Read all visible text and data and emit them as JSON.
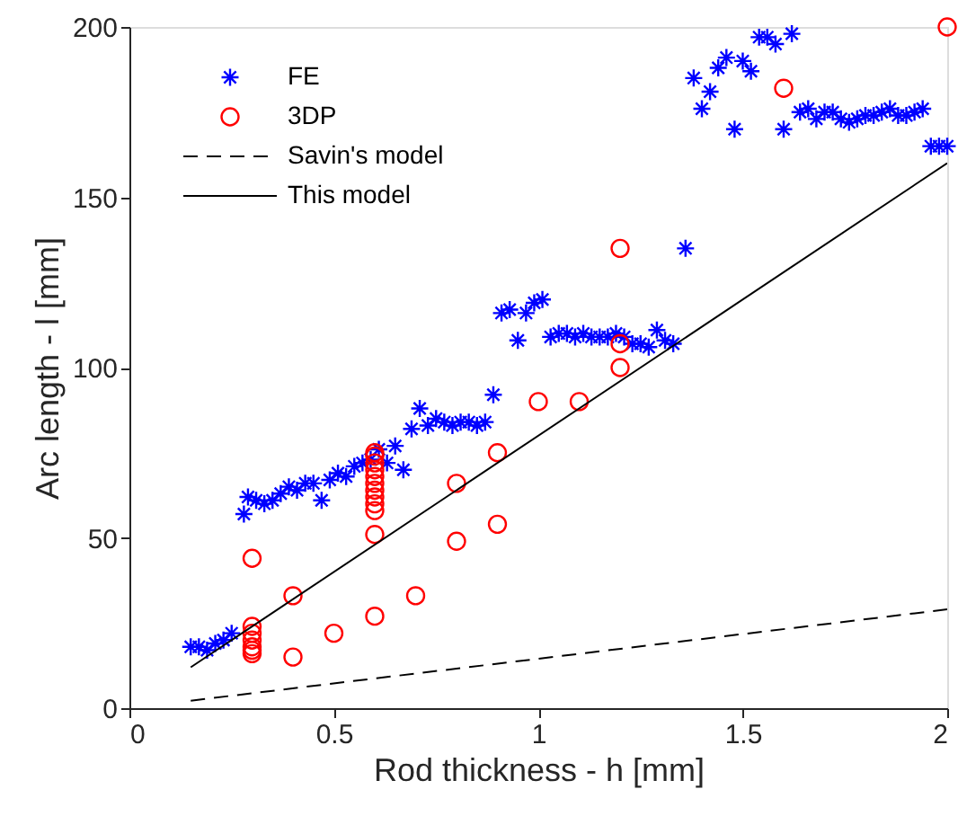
{
  "chart_data": {
    "type": "scatter",
    "xlabel": "Rod thickness - h [mm]",
    "ylabel": "Arc length - l [mm]",
    "xlim": [
      0,
      2
    ],
    "xticks": [
      0,
      0.5,
      1,
      1.5,
      2
    ],
    "ylim": [
      0,
      200
    ],
    "yticks": [
      0,
      50,
      100,
      150,
      200
    ],
    "grid": false,
    "legend": "top left",
    "series": [
      {
        "name": "FE",
        "type": "scatter",
        "marker": "cross",
        "color": "#0000ff",
        "x": [
          0.15,
          0.17,
          0.19,
          0.21,
          0.23,
          0.25,
          0.28,
          0.29,
          0.31,
          0.33,
          0.35,
          0.37,
          0.39,
          0.41,
          0.43,
          0.45,
          0.47,
          0.49,
          0.51,
          0.53,
          0.55,
          0.57,
          0.59,
          0.61,
          0.63,
          0.65,
          0.67,
          0.69,
          0.71,
          0.73,
          0.75,
          0.77,
          0.79,
          0.81,
          0.83,
          0.85,
          0.87,
          0.89,
          0.91,
          0.93,
          0.95,
          0.97,
          0.99,
          1.01,
          1.03,
          1.05,
          1.07,
          1.09,
          1.11,
          1.13,
          1.15,
          1.17,
          1.19,
          1.21,
          1.23,
          1.25,
          1.27,
          1.29,
          1.31,
          1.33,
          1.36,
          1.38,
          1.4,
          1.42,
          1.44,
          1.46,
          1.48,
          1.5,
          1.52,
          1.54,
          1.56,
          1.58,
          1.6,
          1.62,
          1.64,
          1.66,
          1.68,
          1.7,
          1.72,
          1.74,
          1.76,
          1.78,
          1.8,
          1.82,
          1.84,
          1.86,
          1.88,
          1.9,
          1.92,
          1.94,
          1.96,
          1.98,
          2.0
        ],
        "values": [
          18,
          18,
          17,
          19,
          20,
          22,
          57,
          62,
          61,
          60,
          61,
          63,
          65,
          64,
          66,
          66,
          61,
          67,
          69,
          68,
          71,
          72,
          73,
          76,
          72,
          77,
          70,
          82,
          88,
          83,
          85,
          84,
          83,
          84,
          84,
          83,
          84,
          92,
          116,
          117,
          108,
          116,
          119,
          120,
          109,
          110,
          110,
          109,
          110,
          109,
          109,
          109,
          110,
          109,
          107,
          107,
          106,
          111,
          108,
          107,
          135,
          185,
          176,
          181,
          188,
          191,
          170,
          190,
          187,
          197,
          197,
          195,
          170,
          198,
          175,
          176,
          173,
          175,
          175,
          173,
          172,
          173,
          174,
          174,
          175,
          176,
          174,
          174,
          175,
          176,
          165,
          165,
          165
        ]
      },
      {
        "name": "3DP",
        "type": "scatter",
        "marker": "circle",
        "color": "#ff0000",
        "x": [
          0.3,
          0.3,
          0.3,
          0.3,
          0.3,
          0.3,
          0.3,
          0.4,
          0.4,
          0.5,
          0.6,
          0.6,
          0.6,
          0.6,
          0.6,
          0.6,
          0.6,
          0.6,
          0.6,
          0.6,
          0.6,
          0.6,
          0.7,
          0.8,
          0.8,
          0.9,
          0.9,
          1.0,
          1.1,
          1.2,
          1.2,
          1.2,
          1.6,
          2.0
        ],
        "values": [
          44,
          24,
          22,
          20,
          18,
          17,
          16,
          33,
          15,
          22,
          27,
          51,
          58,
          60,
          62,
          64,
          66,
          68,
          70,
          72,
          74,
          75,
          33,
          66,
          49,
          75,
          54,
          90,
          90,
          135,
          107,
          100,
          182,
          200
        ]
      },
      {
        "name": "Savin's model",
        "type": "line",
        "marker": "none",
        "line_style": "dashed",
        "color": "#000000",
        "x": [
          0.15,
          2.0
        ],
        "values": [
          2.2,
          29
        ]
      },
      {
        "name": "This model",
        "type": "line",
        "marker": "none",
        "line_style": "solid",
        "color": "#000000",
        "x": [
          0.15,
          2.0
        ],
        "values": [
          12,
          160
        ]
      }
    ]
  }
}
